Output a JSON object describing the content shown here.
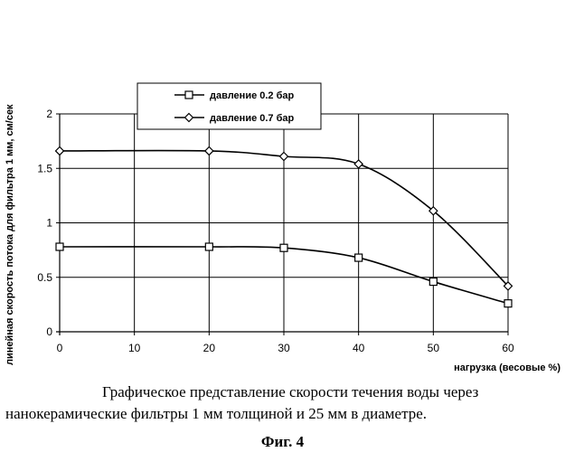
{
  "chart_data": {
    "type": "line",
    "x": [
      0,
      10,
      20,
      30,
      40,
      50,
      60
    ],
    "xlabel": "нагрузка (весовые %)",
    "ylabel": "линейная скорость потока для фильтра 1 мм, см/сек",
    "xlim": [
      0,
      60
    ],
    "ylim": [
      0,
      2
    ],
    "xticks": [
      "0",
      "10",
      "20",
      "30",
      "40",
      "50",
      "60"
    ],
    "yticks": [
      "0",
      "0.5",
      "1",
      "1.5",
      "2"
    ],
    "grid": true,
    "legend_position": "top-left",
    "series": [
      {
        "name": "давление  0.2 бар",
        "marker": "square",
        "points": [
          [
            0,
            0.78
          ],
          [
            20,
            0.78
          ],
          [
            30,
            0.77
          ],
          [
            40,
            0.68
          ],
          [
            50,
            0.46
          ],
          [
            60,
            0.26
          ]
        ]
      },
      {
        "name": "давление  0.7 бар",
        "marker": "diamond",
        "points": [
          [
            0,
            1.66
          ],
          [
            20,
            1.66
          ],
          [
            30,
            1.61
          ],
          [
            40,
            1.54
          ],
          [
            50,
            1.11
          ],
          [
            60,
            0.42
          ]
        ]
      }
    ]
  },
  "caption": {
    "line1": "Графическое представление скорости течения воды через",
    "line2": "нанокерамические фильтры 1 мм толщиной и 25 мм в диаметре.",
    "figure": "Фиг. 4"
  }
}
